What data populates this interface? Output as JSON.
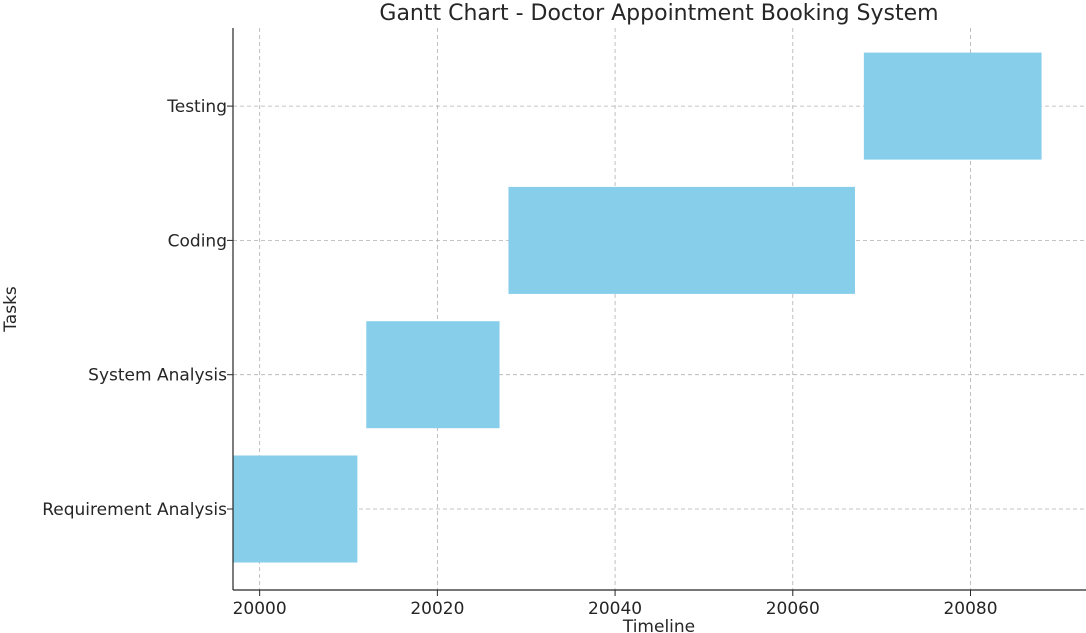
{
  "chart_data": {
    "type": "bar",
    "orientation": "horizontal",
    "title": "Gantt Chart - Doctor Appointment Booking System",
    "xlabel": "Timeline",
    "ylabel": "Tasks",
    "xlim": [
      19997,
      20093
    ],
    "x_ticks": [
      "20000",
      "20020",
      "20040",
      "20060",
      "20080"
    ],
    "grid": true,
    "bar_color": "#87ceeb",
    "tasks": [
      {
        "name": "Requirement Analysis",
        "start": 19997,
        "end": 20011
      },
      {
        "name": "System Analysis",
        "start": 20012,
        "end": 20027
      },
      {
        "name": "Coding",
        "start": 20028,
        "end": 20067
      },
      {
        "name": "Testing",
        "start": 20068,
        "end": 20088
      }
    ]
  }
}
